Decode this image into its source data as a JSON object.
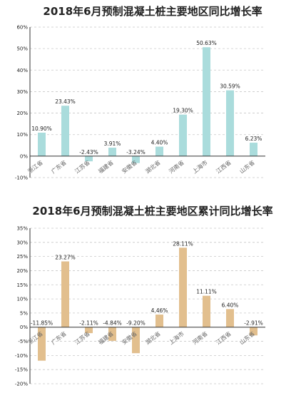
{
  "chart_data": [
    {
      "type": "bar",
      "title": "2018年6月预制混凝土桩主要地区同比增长率",
      "categories": [
        "浙江省",
        "广东省",
        "江苏省",
        "福建省",
        "安徽省",
        "湖北省",
        "河南省",
        "上海市",
        "江西省",
        "山东省"
      ],
      "values": [
        10.9,
        23.43,
        -2.43,
        3.91,
        -3.24,
        4.4,
        19.3,
        50.63,
        30.59,
        6.23
      ],
      "data_labels": [
        "10.90%",
        "23.43%",
        "-2.43%",
        "3.91%",
        "-3.24%",
        "4.40%",
        "19.30%",
        "50.63%",
        "30.59%",
        "6.23%"
      ],
      "ylim": [
        -10,
        60
      ],
      "yticks": [
        -10,
        0,
        10,
        20,
        30,
        40,
        50,
        60
      ],
      "ytick_labels": [
        "-10%",
        "0%",
        "10%",
        "20%",
        "30%",
        "40%",
        "50%",
        "60%"
      ],
      "grid": true,
      "color": "#aadcdc"
    },
    {
      "type": "bar",
      "title": "2018年6月预制混凝土桩主要地区累计同比增长率",
      "categories": [
        "浙江省",
        "广东省",
        "江苏省",
        "福建省",
        "安徽省",
        "湖北省",
        "上海市",
        "河南省",
        "江西省",
        "山东省"
      ],
      "values": [
        -11.85,
        23.27,
        -2.11,
        -4.84,
        -9.2,
        4.46,
        28.11,
        11.11,
        6.4,
        -2.91
      ],
      "data_labels": [
        "-11.85%",
        "23.27%",
        "-2.11%",
        "-4.84%",
        "-9.20%",
        "4.46%",
        "28.11%",
        "11.11%",
        "6.40%",
        "-2.91%"
      ],
      "ylim": [
        -20,
        35
      ],
      "yticks": [
        -20,
        -15,
        -10,
        -5,
        0,
        5,
        10,
        15,
        20,
        25,
        30,
        35
      ],
      "ytick_labels": [
        "-20%",
        "-15%",
        "-10%",
        "-5%",
        "0%",
        "5%",
        "10%",
        "15%",
        "20%",
        "25%",
        "30%",
        "35%"
      ],
      "grid": true,
      "color": "#e2bf8e"
    }
  ]
}
